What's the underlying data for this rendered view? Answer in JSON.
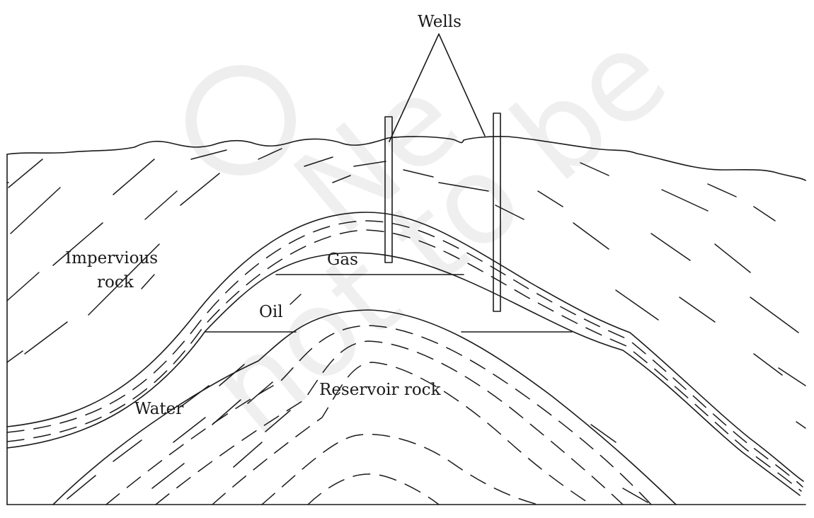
{
  "labels": {
    "wells": "Wells",
    "impervious_rock_line1": "Impervious",
    "impervious_rock_line2": "rock",
    "gas": "Gas",
    "oil": "Oil",
    "water": "Water",
    "reservoir_rock": "Reservoir rock"
  },
  "watermark": {
    "text": "© NCERT not to be republished"
  },
  "colors": {
    "ink": "#1a1a1a",
    "watermark": "#eeeeee",
    "background": "#ffffff"
  }
}
